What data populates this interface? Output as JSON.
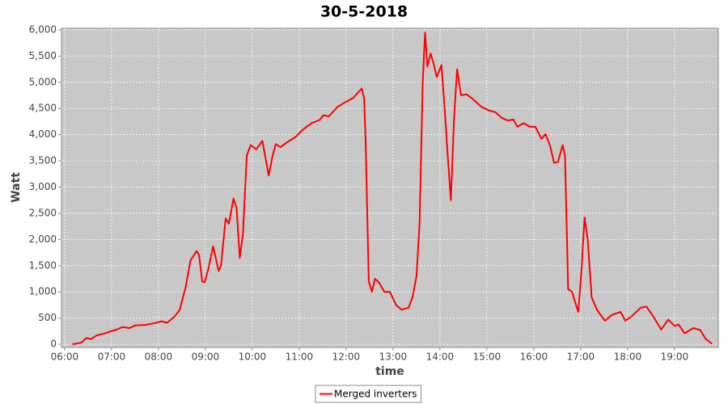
{
  "chart_data": {
    "type": "line",
    "title": "30-5-2018",
    "x_label": "time",
    "y_label": "Watt",
    "x": [
      "06:10",
      "06:21",
      "06:28",
      "06:34",
      "06:41",
      "06:52",
      "06:59",
      "07:07",
      "07:14",
      "07:23",
      "07:30",
      "07:43",
      "07:54",
      "08:04",
      "08:11",
      "08:20",
      "08:27",
      "08:35",
      "08:41",
      "08:49",
      "08:52",
      "08:56",
      "08:59",
      "09:04",
      "09:10",
      "09:17",
      "09:20",
      "09:26",
      "09:30",
      "09:36",
      "09:40",
      "09:44",
      "09:48",
      "09:53",
      "09:58",
      "10:05",
      "10:13",
      "10:21",
      "10:26",
      "10:30",
      "10:36",
      "10:44",
      "10:55",
      "11:05",
      "11:16",
      "11:26",
      "11:31",
      "11:38",
      "11:49",
      "11:59",
      "12:09",
      "12:20",
      "12:23",
      "12:25",
      "12:29",
      "12:33",
      "12:37",
      "12:42",
      "12:49",
      "12:56",
      "13:04",
      "13:11",
      "13:20",
      "13:25",
      "13:30",
      "13:34",
      "13:38",
      "13:41",
      "13:44",
      "13:48",
      "13:52",
      "13:56",
      "14:02",
      "14:06",
      "14:10",
      "14:14",
      "14:18",
      "14:22",
      "14:27",
      "14:34",
      "14:42",
      "14:53",
      "15:03",
      "15:11",
      "15:19",
      "15:27",
      "15:34",
      "15:39",
      "15:47",
      "15:55",
      "16:02",
      "16:10",
      "16:15",
      "16:21",
      "16:26",
      "16:31",
      "16:37",
      "16:40",
      "16:44",
      "16:49",
      "16:54",
      "16:57",
      "17:01",
      "17:05",
      "17:09",
      "17:14",
      "17:21",
      "17:31",
      "17:40",
      "17:51",
      "17:57",
      "18:05",
      "18:17",
      "18:24",
      "18:32",
      "18:43",
      "18:52",
      "19:00",
      "19:05",
      "19:13",
      "19:24",
      "19:33",
      "19:40",
      "19:48"
    ],
    "series": [
      {
        "name": "Merged inverters",
        "color": "#ff0000",
        "values": [
          0,
          30,
          120,
          100,
          170,
          210,
          250,
          280,
          330,
          310,
          360,
          370,
          400,
          440,
          410,
          520,
          650,
          1100,
          1600,
          1780,
          1700,
          1200,
          1180,
          1450,
          1870,
          1400,
          1500,
          2400,
          2300,
          2780,
          2600,
          1650,
          2100,
          3600,
          3800,
          3720,
          3880,
          3220,
          3600,
          3820,
          3760,
          3850,
          3950,
          4100,
          4220,
          4280,
          4370,
          4350,
          4530,
          4620,
          4700,
          4880,
          4700,
          3900,
          1200,
          1000,
          1250,
          1180,
          1000,
          1000,
          750,
          660,
          700,
          900,
          1300,
          2300,
          5000,
          5950,
          5300,
          5550,
          5350,
          5100,
          5330,
          4500,
          3600,
          2750,
          4300,
          5250,
          4750,
          4770,
          4680,
          4530,
          4460,
          4430,
          4320,
          4270,
          4290,
          4150,
          4220,
          4150,
          4150,
          3920,
          4010,
          3780,
          3460,
          3480,
          3800,
          3600,
          1050,
          1000,
          750,
          620,
          1400,
          2420,
          2000,
          900,
          650,
          450,
          560,
          620,
          450,
          530,
          700,
          720,
          550,
          280,
          470,
          350,
          380,
          210,
          310,
          270,
          100,
          10
        ]
      }
    ],
    "xlim": [
      "05:56",
      "19:56"
    ],
    "xticks": [
      "06:00",
      "07:00",
      "08:00",
      "09:00",
      "10:00",
      "11:00",
      "12:00",
      "13:00",
      "14:00",
      "15:00",
      "16:00",
      "17:00",
      "18:00",
      "19:00"
    ],
    "ylim": [
      -60,
      6030
    ],
    "yticks": [
      0,
      500,
      {
        "value": 1000,
        "label": "1,000"
      },
      {
        "value": 1500,
        "label": "1,500"
      },
      {
        "value": 2000,
        "label": "2,000"
      },
      {
        "value": 2500,
        "label": "2,500"
      },
      {
        "value": 3000,
        "label": "3,000"
      },
      {
        "value": 3500,
        "label": "3,500"
      },
      {
        "value": 4000,
        "label": "4,000"
      },
      {
        "value": 4500,
        "label": "4,500"
      },
      {
        "value": 5000,
        "label": "5,000"
      },
      {
        "value": 5500,
        "label": "5,500"
      },
      {
        "value": 6000,
        "label": "6,000"
      }
    ],
    "grid": true,
    "legend": "bottom",
    "plot_background": "#c8c8c8"
  }
}
